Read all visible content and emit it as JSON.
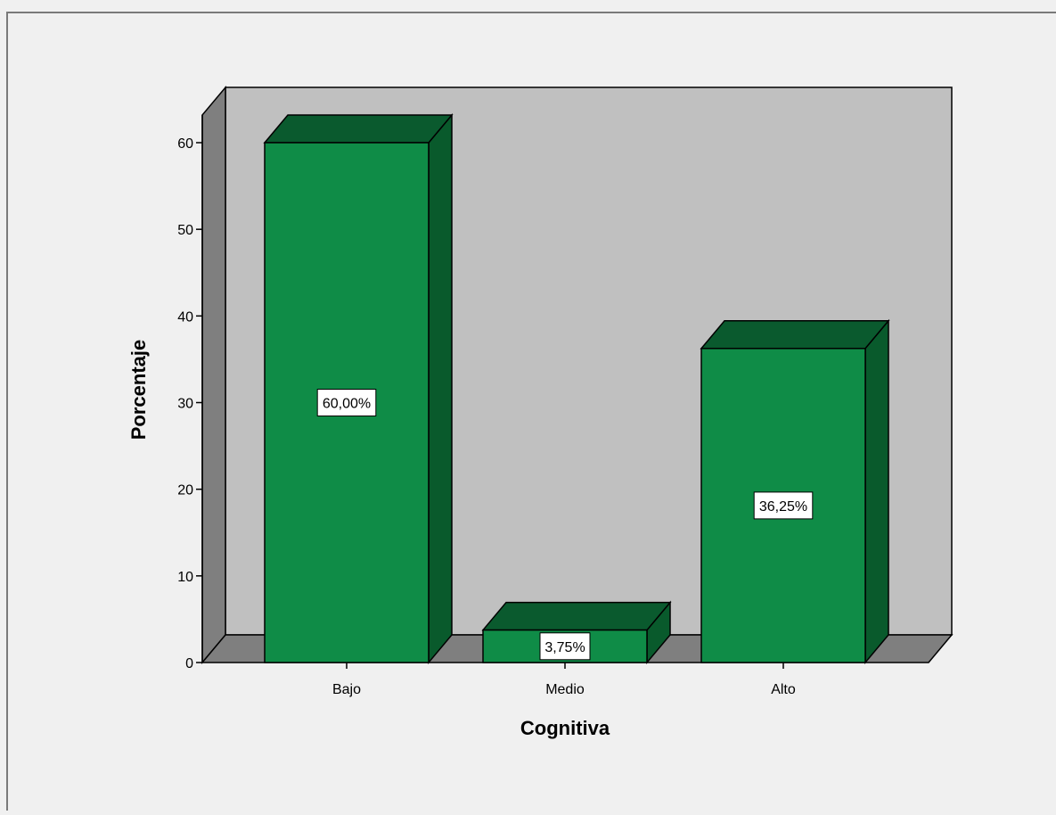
{
  "colors": {
    "page_background": "#f0f0f0",
    "plot_back_wall": "#c0c0c0",
    "plot_side_wall": "#7f7f7f",
    "plot_floor": "#7f7f7f",
    "bar_front": "#0f8c47",
    "bar_top": "#0a5a2e",
    "bar_side": "#095a2c",
    "outline": "#000000",
    "label_box": "#ffffff"
  },
  "chart_data": {
    "type": "bar",
    "style": "3d",
    "categories": [
      "Bajo",
      "Medio",
      "Alto"
    ],
    "values": [
      60.0,
      3.75,
      36.25
    ],
    "data_labels": [
      "60,00%",
      "3,75%",
      "36,25%"
    ],
    "xlabel": "Cognitiva",
    "ylabel": "Porcentaje",
    "ylim": [
      0,
      60
    ],
    "yticks": [
      0,
      10,
      20,
      30,
      40,
      50,
      60
    ],
    "grid": false,
    "legend": "none"
  }
}
